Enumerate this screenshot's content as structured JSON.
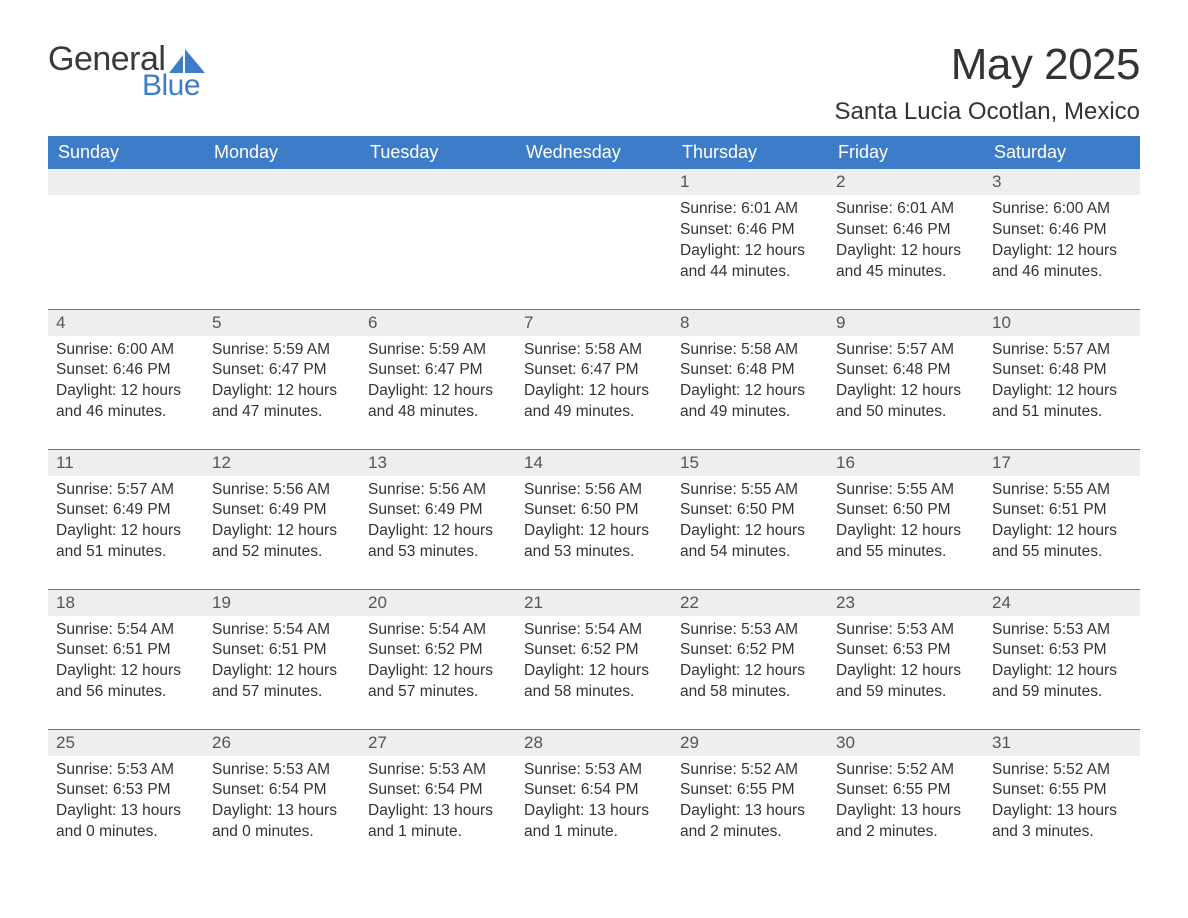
{
  "brand": {
    "general": "General",
    "blue": "Blue"
  },
  "title": "May 2025",
  "location": "Santa Lucia Ocotlan, Mexico",
  "colors": {
    "header_bg": "#3d7cc9",
    "header_text": "#ffffff",
    "daynum_bg": "#eeeeee",
    "border": "#3d7cc9",
    "body_text": "#333333",
    "logo_blue": "#3d7cc9",
    "page_bg": "#ffffff"
  },
  "columns": [
    "Sunday",
    "Monday",
    "Tuesday",
    "Wednesday",
    "Thursday",
    "Friday",
    "Saturday"
  ],
  "weeks": [
    [
      null,
      null,
      null,
      null,
      {
        "n": "1",
        "sunrise": "6:01 AM",
        "sunset": "6:46 PM",
        "daylight": "12 hours and 44 minutes."
      },
      {
        "n": "2",
        "sunrise": "6:01 AM",
        "sunset": "6:46 PM",
        "daylight": "12 hours and 45 minutes."
      },
      {
        "n": "3",
        "sunrise": "6:00 AM",
        "sunset": "6:46 PM",
        "daylight": "12 hours and 46 minutes."
      }
    ],
    [
      {
        "n": "4",
        "sunrise": "6:00 AM",
        "sunset": "6:46 PM",
        "daylight": "12 hours and 46 minutes."
      },
      {
        "n": "5",
        "sunrise": "5:59 AM",
        "sunset": "6:47 PM",
        "daylight": "12 hours and 47 minutes."
      },
      {
        "n": "6",
        "sunrise": "5:59 AM",
        "sunset": "6:47 PM",
        "daylight": "12 hours and 48 minutes."
      },
      {
        "n": "7",
        "sunrise": "5:58 AM",
        "sunset": "6:47 PM",
        "daylight": "12 hours and 49 minutes."
      },
      {
        "n": "8",
        "sunrise": "5:58 AM",
        "sunset": "6:48 PM",
        "daylight": "12 hours and 49 minutes."
      },
      {
        "n": "9",
        "sunrise": "5:57 AM",
        "sunset": "6:48 PM",
        "daylight": "12 hours and 50 minutes."
      },
      {
        "n": "10",
        "sunrise": "5:57 AM",
        "sunset": "6:48 PM",
        "daylight": "12 hours and 51 minutes."
      }
    ],
    [
      {
        "n": "11",
        "sunrise": "5:57 AM",
        "sunset": "6:49 PM",
        "daylight": "12 hours and 51 minutes."
      },
      {
        "n": "12",
        "sunrise": "5:56 AM",
        "sunset": "6:49 PM",
        "daylight": "12 hours and 52 minutes."
      },
      {
        "n": "13",
        "sunrise": "5:56 AM",
        "sunset": "6:49 PM",
        "daylight": "12 hours and 53 minutes."
      },
      {
        "n": "14",
        "sunrise": "5:56 AM",
        "sunset": "6:50 PM",
        "daylight": "12 hours and 53 minutes."
      },
      {
        "n": "15",
        "sunrise": "5:55 AM",
        "sunset": "6:50 PM",
        "daylight": "12 hours and 54 minutes."
      },
      {
        "n": "16",
        "sunrise": "5:55 AM",
        "sunset": "6:50 PM",
        "daylight": "12 hours and 55 minutes."
      },
      {
        "n": "17",
        "sunrise": "5:55 AM",
        "sunset": "6:51 PM",
        "daylight": "12 hours and 55 minutes."
      }
    ],
    [
      {
        "n": "18",
        "sunrise": "5:54 AM",
        "sunset": "6:51 PM",
        "daylight": "12 hours and 56 minutes."
      },
      {
        "n": "19",
        "sunrise": "5:54 AM",
        "sunset": "6:51 PM",
        "daylight": "12 hours and 57 minutes."
      },
      {
        "n": "20",
        "sunrise": "5:54 AM",
        "sunset": "6:52 PM",
        "daylight": "12 hours and 57 minutes."
      },
      {
        "n": "21",
        "sunrise": "5:54 AM",
        "sunset": "6:52 PM",
        "daylight": "12 hours and 58 minutes."
      },
      {
        "n": "22",
        "sunrise": "5:53 AM",
        "sunset": "6:52 PM",
        "daylight": "12 hours and 58 minutes."
      },
      {
        "n": "23",
        "sunrise": "5:53 AM",
        "sunset": "6:53 PM",
        "daylight": "12 hours and 59 minutes."
      },
      {
        "n": "24",
        "sunrise": "5:53 AM",
        "sunset": "6:53 PM",
        "daylight": "12 hours and 59 minutes."
      }
    ],
    [
      {
        "n": "25",
        "sunrise": "5:53 AM",
        "sunset": "6:53 PM",
        "daylight": "13 hours and 0 minutes."
      },
      {
        "n": "26",
        "sunrise": "5:53 AM",
        "sunset": "6:54 PM",
        "daylight": "13 hours and 0 minutes."
      },
      {
        "n": "27",
        "sunrise": "5:53 AM",
        "sunset": "6:54 PM",
        "daylight": "13 hours and 1 minute."
      },
      {
        "n": "28",
        "sunrise": "5:53 AM",
        "sunset": "6:54 PM",
        "daylight": "13 hours and 1 minute."
      },
      {
        "n": "29",
        "sunrise": "5:52 AM",
        "sunset": "6:55 PM",
        "daylight": "13 hours and 2 minutes."
      },
      {
        "n": "30",
        "sunrise": "5:52 AM",
        "sunset": "6:55 PM",
        "daylight": "13 hours and 2 minutes."
      },
      {
        "n": "31",
        "sunrise": "5:52 AM",
        "sunset": "6:55 PM",
        "daylight": "13 hours and 3 minutes."
      }
    ]
  ],
  "labels": {
    "sunrise": "Sunrise: ",
    "sunset": "Sunset: ",
    "daylight": "Daylight: "
  }
}
